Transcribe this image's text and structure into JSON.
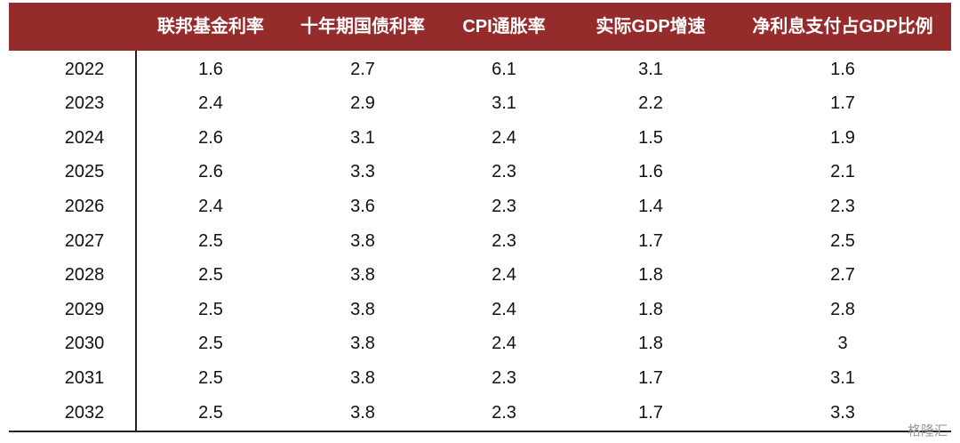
{
  "table": {
    "columns": [
      "联邦基金利率",
      "十年期国债利率",
      "CPI通胀率",
      "实际GDP增速",
      "净利息支付占GDP比例"
    ],
    "rows": [
      [
        2022,
        1.6,
        2.7,
        6.1,
        3.1,
        1.6
      ],
      [
        2023,
        2.4,
        2.9,
        3.1,
        2.2,
        1.7
      ],
      [
        2024,
        2.6,
        3.1,
        2.4,
        1.5,
        1.9
      ],
      [
        2025,
        2.6,
        3.3,
        2.3,
        1.6,
        2.1
      ],
      [
        2026,
        2.4,
        3.6,
        2.3,
        1.4,
        2.3
      ],
      [
        2027,
        2.5,
        3.8,
        2.3,
        1.7,
        2.5
      ],
      [
        2028,
        2.5,
        3.8,
        2.4,
        1.8,
        2.7
      ],
      [
        2029,
        2.5,
        3.8,
        2.4,
        1.8,
        2.8
      ],
      [
        2030,
        2.5,
        3.8,
        2.4,
        1.8,
        3
      ],
      [
        2031,
        2.5,
        3.8,
        2.3,
        1.7,
        3.1
      ],
      [
        2032,
        2.5,
        3.8,
        2.3,
        1.7,
        3.3
      ]
    ]
  },
  "watermark": "格隆汇"
}
